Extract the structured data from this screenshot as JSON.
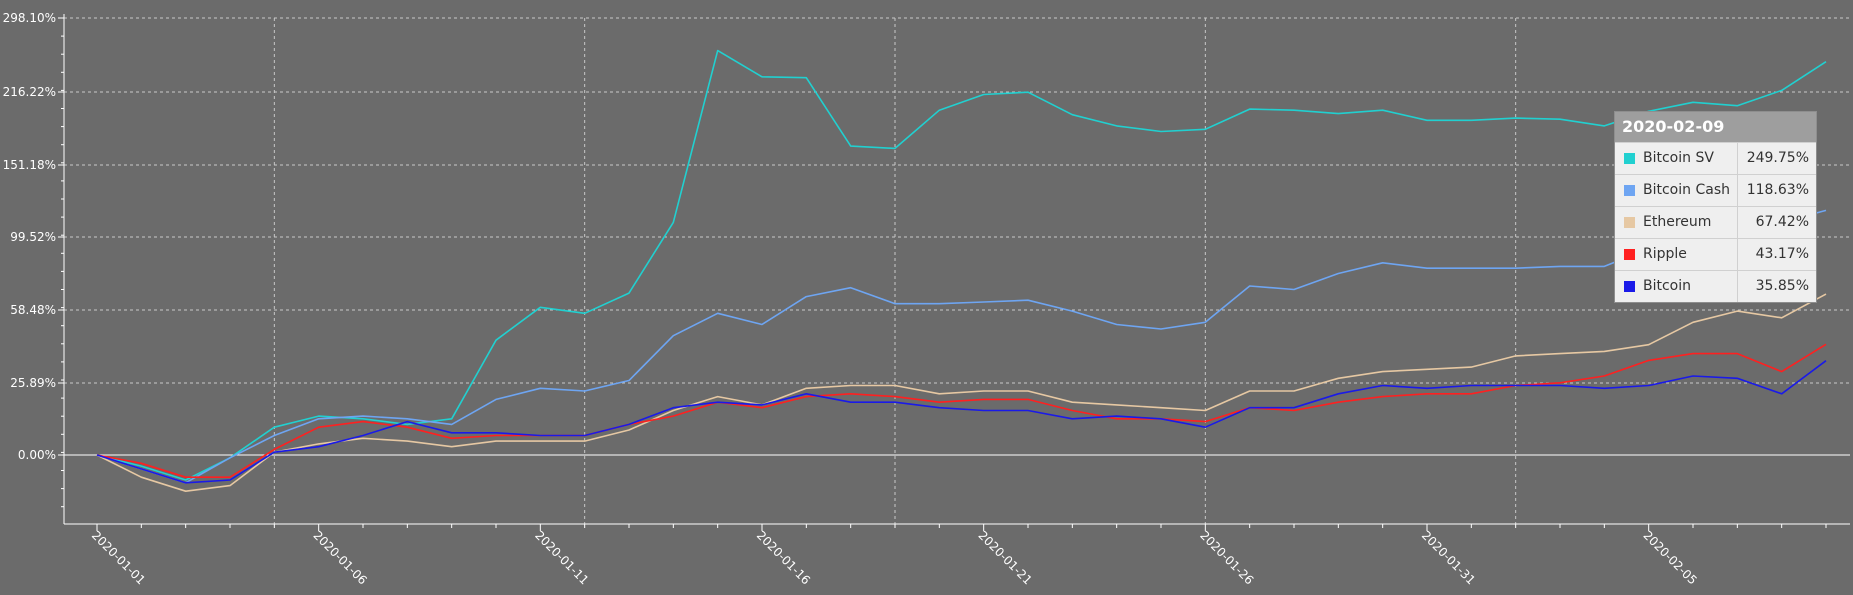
{
  "chart_data": {
    "type": "line",
    "title": "",
    "xlabel": "",
    "ylabel": "",
    "y_tick_labels": [
      "0.00%",
      "25.89%",
      "58.48%",
      "99.52%",
      "151.18%",
      "216.22%",
      "298.10%"
    ],
    "x_tick_labels": [
      "2020-01-01",
      "2020-01-06",
      "2020-01-11",
      "2020-01-16",
      "2020-01-21",
      "2020-01-26",
      "2020-01-31",
      "2020-02-05"
    ],
    "x": [
      "2020-01-01",
      "2020-01-02",
      "2020-01-03",
      "2020-01-04",
      "2020-01-05",
      "2020-01-06",
      "2020-01-07",
      "2020-01-08",
      "2020-01-09",
      "2020-01-10",
      "2020-01-11",
      "2020-01-12",
      "2020-01-13",
      "2020-01-14",
      "2020-01-15",
      "2020-01-16",
      "2020-01-17",
      "2020-01-18",
      "2020-01-19",
      "2020-01-20",
      "2020-01-21",
      "2020-01-22",
      "2020-01-23",
      "2020-01-24",
      "2020-01-25",
      "2020-01-26",
      "2020-01-27",
      "2020-01-28",
      "2020-01-29",
      "2020-01-30",
      "2020-01-31",
      "2020-02-01",
      "2020-02-02",
      "2020-02-03",
      "2020-02-04",
      "2020-02-05",
      "2020-02-06",
      "2020-02-07",
      "2020-02-08",
      "2020-02-09"
    ],
    "series": [
      {
        "name": "Bitcoin SV",
        "color": "#21d0d0",
        "values": [
          0,
          -4,
          -9,
          -1,
          10,
          14,
          13,
          11,
          13,
          45,
          60,
          57,
          68,
          110,
          262,
          233,
          232,
          168,
          166,
          200,
          214,
          216,
          196,
          186,
          181,
          183,
          201,
          200,
          197,
          200,
          191,
          191,
          193,
          192,
          186,
          199,
          207,
          204,
          218,
          249.75
        ]
      },
      {
        "name": "Bitcoin Cash",
        "color": "#6ea5f2",
        "values": [
          0,
          -5,
          -10,
          -1,
          7,
          13,
          14,
          13,
          11,
          20,
          24,
          23,
          27,
          47,
          57,
          52,
          66,
          71,
          62,
          62,
          63,
          64,
          58,
          52,
          50,
          53,
          72,
          70,
          79,
          85,
          82,
          82,
          82,
          83,
          83,
          93,
          98,
          101,
          110,
          118.63
        ]
      },
      {
        "name": "Ethereum",
        "color": "#e6c8a3",
        "values": [
          0,
          -8,
          -13,
          -11,
          1,
          4,
          6,
          5,
          3,
          5,
          5,
          5,
          9,
          16,
          21,
          18,
          24,
          25,
          25,
          22,
          23,
          23,
          19,
          18,
          17,
          16,
          23,
          23,
          28,
          31,
          32,
          33,
          38,
          39,
          40,
          43,
          53,
          58,
          55,
          67.42
        ]
      },
      {
        "name": "Ripple",
        "color": "#ff2020",
        "values": [
          0,
          -3,
          -8,
          -8,
          2,
          10,
          12,
          10,
          6,
          7,
          7,
          7,
          11,
          14,
          19,
          17,
          21,
          22,
          21,
          19,
          20,
          20,
          16,
          13,
          13,
          12,
          17,
          16,
          19,
          21,
          22,
          22,
          25,
          26,
          29,
          36,
          39,
          39,
          31,
          43.17
        ]
      },
      {
        "name": "Bitcoin",
        "color": "#1a1ae8",
        "values": [
          0,
          -5,
          -10,
          -9,
          1,
          3,
          7,
          12,
          8,
          8,
          7,
          7,
          11,
          17,
          19,
          18,
          22,
          19,
          19,
          17,
          16,
          16,
          13,
          14,
          13,
          10,
          17,
          17,
          22,
          25,
          24,
          25,
          25,
          25,
          24,
          25,
          29,
          28,
          22,
          35.85
        ]
      }
    ],
    "tooltip": {
      "date": "2020-02-09"
    }
  },
  "tooltip_rows": [
    {
      "name": "Bitcoin SV",
      "value": "249.75%",
      "color": "#21d0d0"
    },
    {
      "name": "Bitcoin Cash",
      "value": "118.63%",
      "color": "#6ea5f2"
    },
    {
      "name": "Ethereum",
      "value": "67.42%",
      "color": "#e6c8a3"
    },
    {
      "name": "Ripple",
      "value": "43.17%",
      "color": "#ff2020"
    },
    {
      "name": "Bitcoin",
      "value": "35.85%",
      "color": "#1a1ae8"
    }
  ]
}
